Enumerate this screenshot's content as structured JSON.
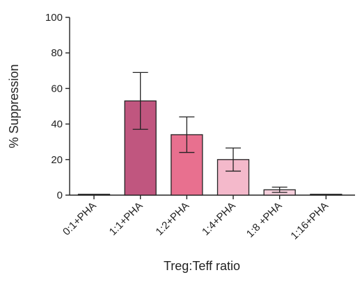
{
  "chart_data": {
    "type": "bar",
    "categories": [
      "0:1+PHA",
      "1:1+PHA",
      "1:2+PHA",
      "1:4+PHA",
      "1:8 +PHA",
      "1:16+PHA"
    ],
    "values": [
      0,
      53,
      34,
      20,
      3,
      0
    ],
    "error": [
      0,
      16,
      10,
      6.5,
      1.5,
      0
    ],
    "colors": [
      "#ffffff",
      "#c0567f",
      "#e8708f",
      "#f4b9cb",
      "#f6cfdc",
      "#ffffff"
    ],
    "xlabel": "Treg:Teff ratio",
    "ylabel": "% Suppression",
    "ylim": [
      0,
      100
    ],
    "yticks": [
      0,
      20,
      40,
      60,
      80,
      100
    ],
    "ytick_labels": [
      "0",
      "20",
      "40",
      "60",
      "80",
      "100"
    ],
    "grid": false
  }
}
